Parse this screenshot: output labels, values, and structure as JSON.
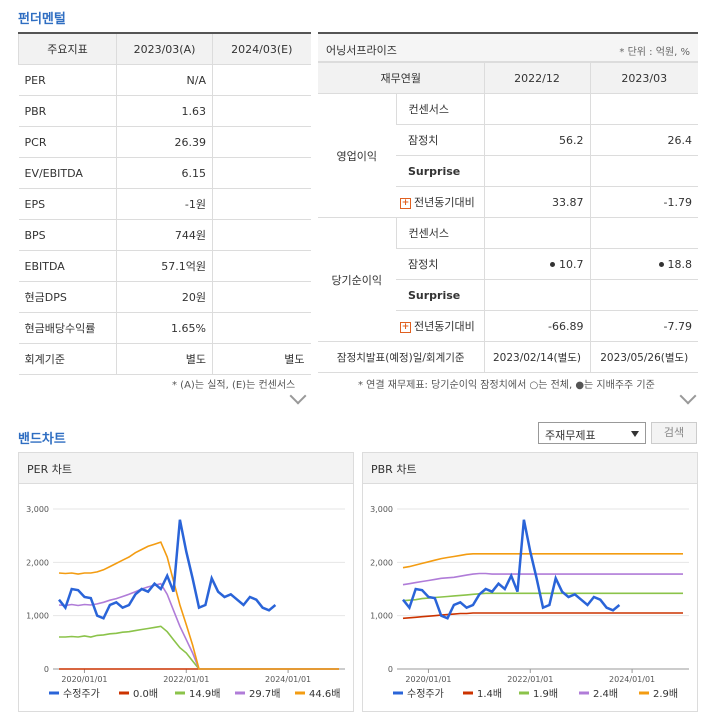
{
  "fundamental": {
    "title": "펀더멘털",
    "header": {
      "col0": "주요지표",
      "col1": "2023/03(A)",
      "col2": "2024/03(E)"
    },
    "rows": [
      {
        "label": "PER",
        "a": "N/A",
        "e": ""
      },
      {
        "label": "PBR",
        "a": "1.63",
        "e": ""
      },
      {
        "label": "PCR",
        "a": "26.39",
        "e": ""
      },
      {
        "label": "EV/EBITDA",
        "a": "6.15",
        "e": ""
      },
      {
        "label": "EPS",
        "a": "-1원",
        "e": ""
      },
      {
        "label": "BPS",
        "a": "744원",
        "e": ""
      },
      {
        "label": "EBITDA",
        "a": "57.1억원",
        "e": ""
      },
      {
        "label": "현금DPS",
        "a": "20원",
        "e": ""
      },
      {
        "label": "현금배당수익률",
        "a": "1.65%",
        "e": ""
      },
      {
        "label": "회계기준",
        "a": "별도",
        "e": "별도"
      }
    ],
    "note": "* (A)는 실적, (E)는 컨센서스"
  },
  "earnings": {
    "title": "어닝서프라이즈",
    "unit": "* 단위 : 억원, %",
    "header": {
      "col0": "재무연월",
      "col1": "2022/12",
      "col2": "2023/03"
    },
    "groups": [
      {
        "name": "영업이익",
        "rows": [
          {
            "label": "컨센서스",
            "v1": "",
            "v2": "",
            "bold": false,
            "plus": false
          },
          {
            "label": "잠정치",
            "v1": "56.2",
            "v2": "26.4",
            "bold": false,
            "plus": false
          },
          {
            "label": "Surprise",
            "v1": "",
            "v2": "",
            "bold": true,
            "plus": false
          },
          {
            "label": "전년동기대비",
            "v1": "33.87",
            "v2": "-1.79",
            "bold": false,
            "plus": true
          }
        ]
      },
      {
        "name": "당기순이익",
        "rows": [
          {
            "label": "컨센서스",
            "v1": "",
            "v2": "",
            "bold": false,
            "plus": false
          },
          {
            "label": "잠정치",
            "v1": "10.7",
            "v2": "18.8",
            "bold": false,
            "plus": false,
            "dot": true
          },
          {
            "label": "Surprise",
            "v1": "",
            "v2": "",
            "bold": true,
            "plus": false
          },
          {
            "label": "전년동기대비",
            "v1": "-66.89",
            "v2": "-7.79",
            "bold": false,
            "plus": true
          }
        ]
      }
    ],
    "footer": {
      "label": "잠정치발표(예정)일/회계기준",
      "v1": "2023/02/14(별도)",
      "v2": "2023/05/26(별도)"
    },
    "note": "* 연결 재무제표: 당기순이익 잠정치에서 ○는 전체, ●는 지배주주 기준"
  },
  "band": {
    "title": "밴드차트",
    "select_value": "주재무제표",
    "search_label": "검색"
  },
  "chart_data": [
    {
      "type": "line",
      "title": "PER 차트",
      "ylim": [
        0,
        3000
      ],
      "yticks": [
        "3,000",
        "2,000",
        "1,000",
        "0"
      ],
      "xticks": [
        "2020/01/01",
        "2022/01/01",
        "2024/01/01"
      ],
      "series": [
        {
          "name": "수정주가",
          "color": "#2a64d8",
          "values": [
            1300,
            1150,
            1500,
            1480,
            1350,
            1330,
            1000,
            950,
            1200,
            1250,
            1150,
            1200,
            1400,
            1500,
            1450,
            1600,
            1500,
            1750,
            1450,
            2800,
            2200,
            1700,
            1150,
            1200,
            1700,
            1450,
            1350,
            1400,
            1300,
            1200,
            1350,
            1300,
            1150,
            1100,
            1200
          ]
        },
        {
          "name": "0.0배",
          "color": "#cc3300",
          "values": [
            0,
            0,
            0,
            0,
            0,
            0,
            0,
            0,
            0,
            0,
            0,
            0,
            0,
            0,
            0,
            0,
            0,
            0,
            0,
            0,
            0,
            0,
            0,
            0,
            0,
            0,
            0,
            0,
            0,
            0,
            0,
            0,
            0,
            0,
            0,
            0,
            0,
            0,
            0,
            0,
            0,
            0,
            0,
            0,
            0
          ]
        },
        {
          "name": "14.9배",
          "color": "#8bc34a",
          "values": [
            600,
            600,
            610,
            600,
            620,
            600,
            630,
            640,
            660,
            670,
            690,
            700,
            720,
            740,
            760,
            780,
            800,
            700,
            550,
            400,
            300,
            150,
            0,
            0,
            0,
            0,
            0,
            0,
            0,
            0,
            0,
            0,
            0,
            0,
            0,
            0,
            0,
            0,
            0,
            0,
            0,
            0,
            0,
            0,
            0
          ]
        },
        {
          "name": "29.7배",
          "color": "#b07cd8",
          "values": [
            1200,
            1190,
            1210,
            1190,
            1210,
            1200,
            1220,
            1250,
            1290,
            1320,
            1360,
            1400,
            1450,
            1500,
            1540,
            1570,
            1600,
            1400,
            1100,
            800,
            550,
            300,
            0,
            0,
            0,
            0,
            0,
            0,
            0,
            0,
            0,
            0,
            0,
            0,
            0,
            0,
            0,
            0,
            0,
            0,
            0,
            0,
            0,
            0,
            0
          ]
        },
        {
          "name": "44.6배",
          "color": "#f39c12",
          "values": [
            1800,
            1790,
            1800,
            1780,
            1800,
            1800,
            1820,
            1860,
            1920,
            1980,
            2040,
            2100,
            2180,
            2240,
            2300,
            2340,
            2380,
            2100,
            1650,
            1200,
            830,
            450,
            0,
            0,
            0,
            0,
            0,
            0,
            0,
            0,
            0,
            0,
            0,
            0,
            0,
            0,
            0,
            0,
            0,
            0,
            0,
            0,
            0,
            0,
            0
          ]
        }
      ]
    },
    {
      "type": "line",
      "title": "PBR 차트",
      "ylim": [
        0,
        3000
      ],
      "yticks": [
        "3,000",
        "2,000",
        "1,000",
        "0"
      ],
      "xticks": [
        "2020/01/01",
        "2022/01/01",
        "2024/01/01"
      ],
      "series": [
        {
          "name": "수정주가",
          "color": "#2a64d8",
          "values": [
            1300,
            1150,
            1500,
            1480,
            1350,
            1330,
            1000,
            950,
            1200,
            1250,
            1150,
            1200,
            1400,
            1500,
            1450,
            1600,
            1500,
            1750,
            1450,
            2800,
            2200,
            1700,
            1150,
            1200,
            1700,
            1450,
            1350,
            1400,
            1300,
            1200,
            1350,
            1300,
            1150,
            1100,
            1200
          ]
        },
        {
          "name": "1.4배",
          "color": "#cc3300",
          "values": [
            950,
            960,
            970,
            980,
            990,
            1000,
            1010,
            1020,
            1030,
            1040,
            1040,
            1050,
            1050,
            1050,
            1050,
            1050,
            1050,
            1050,
            1050,
            1050,
            1050,
            1050,
            1050,
            1050,
            1050,
            1050,
            1050,
            1050,
            1050,
            1050,
            1050,
            1050,
            1050,
            1050,
            1050,
            1050,
            1050,
            1050,
            1050,
            1050,
            1050,
            1050,
            1050,
            1050,
            1050
          ]
        },
        {
          "name": "1.9배",
          "color": "#8bc34a",
          "values": [
            1280,
            1290,
            1300,
            1320,
            1330,
            1340,
            1350,
            1360,
            1370,
            1380,
            1390,
            1400,
            1410,
            1420,
            1420,
            1420,
            1420,
            1420,
            1420,
            1420,
            1420,
            1420,
            1420,
            1420,
            1420,
            1420,
            1420,
            1420,
            1420,
            1420,
            1420,
            1420,
            1420,
            1420,
            1420,
            1420,
            1420,
            1420,
            1420,
            1420,
            1420,
            1420,
            1420,
            1420,
            1420
          ]
        },
        {
          "name": "2.4배",
          "color": "#b07cd8",
          "values": [
            1580,
            1600,
            1620,
            1640,
            1660,
            1680,
            1700,
            1710,
            1720,
            1740,
            1760,
            1780,
            1790,
            1790,
            1780,
            1780,
            1780,
            1780,
            1780,
            1780,
            1780,
            1780,
            1780,
            1780,
            1780,
            1780,
            1780,
            1780,
            1780,
            1780,
            1780,
            1780,
            1780,
            1780,
            1780,
            1780,
            1780,
            1780,
            1780,
            1780,
            1780,
            1780,
            1780,
            1780,
            1780
          ]
        },
        {
          "name": "2.9배",
          "color": "#f39c12",
          "values": [
            1900,
            1920,
            1950,
            1980,
            2010,
            2040,
            2070,
            2090,
            2110,
            2130,
            2150,
            2160,
            2160,
            2160,
            2160,
            2160,
            2160,
            2160,
            2160,
            2160,
            2160,
            2160,
            2160,
            2160,
            2160,
            2160,
            2160,
            2160,
            2160,
            2160,
            2160,
            2160,
            2160,
            2160,
            2160,
            2160,
            2160,
            2160,
            2160,
            2160,
            2160,
            2160,
            2160,
            2160,
            2160
          ]
        }
      ]
    }
  ]
}
